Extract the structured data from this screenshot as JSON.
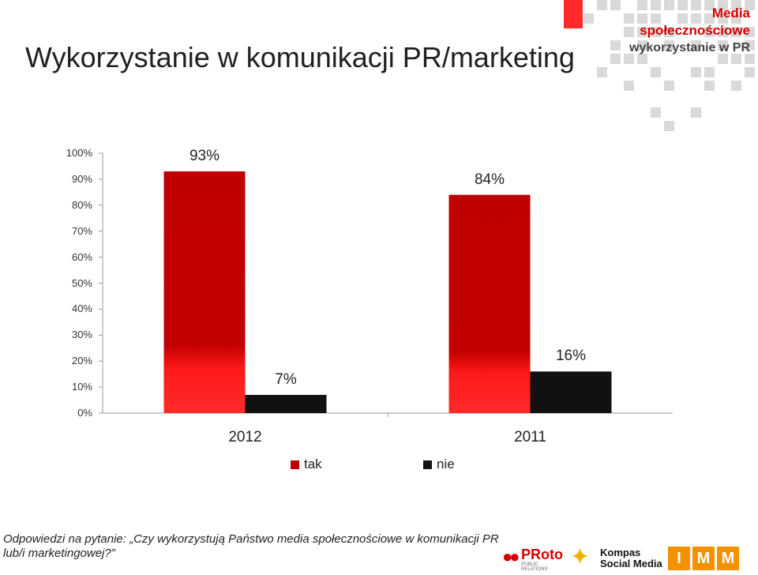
{
  "header": {
    "title": "Wykorzystanie w komunikacji PR/marketing",
    "brand_line1": "Media",
    "brand_line2": "społecznościowe",
    "brand_line3": "wykorzystanie w PR"
  },
  "chart_data": {
    "type": "bar",
    "categories": [
      "2012",
      "2011"
    ],
    "series": [
      {
        "name": "tak",
        "values": [
          93,
          84
        ],
        "color": "#c00000"
      },
      {
        "name": "nie",
        "values": [
          7,
          16
        ],
        "color": "#111111"
      }
    ],
    "value_labels": [
      [
        "93%",
        "84%"
      ],
      [
        "7%",
        "16%"
      ]
    ],
    "ylim": [
      0,
      100
    ],
    "yticks": [
      "0%",
      "10%",
      "20%",
      "30%",
      "40%",
      "50%",
      "60%",
      "70%",
      "80%",
      "90%",
      "100%"
    ],
    "legend_position": "bottom",
    "grid": false
  },
  "footnote": "Odpowiedzi na pytanie: „Czy wykorzystują Państwo media społecznościowe w komunikacji PR lub/i marketingowej?”",
  "logos": {
    "proto": "PRoto",
    "proto_sub": "PUBLIC RELATIONS",
    "kompas_line1": "Kompas",
    "kompas_line2": "Social Media",
    "imm": [
      "I",
      "M",
      "M"
    ]
  },
  "colors": {
    "accent_red": "#d40000",
    "mosaic_gray": "#d9d9d9",
    "imm_orange": "#f39200"
  }
}
